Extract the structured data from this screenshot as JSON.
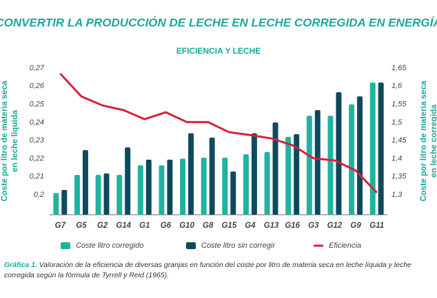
{
  "chart_data": {
    "type": "bar",
    "title": "CONVERTIR LA PRODUCCIÓN DE LECHE EN LECHE CORREGIDA EN ENERGÍA",
    "subtitle": "EFICIENCIA Y LECHE",
    "y_label": "Coste por litro de materia seca en leche líquida",
    "y2_label": "Coste por litro de materia seca en leche corregida",
    "categories": [
      "G7",
      "G5",
      "G2",
      "G14",
      "G1",
      "G6",
      "G10",
      "G8",
      "G15",
      "G4",
      "G13",
      "G16",
      "G3",
      "G12",
      "G9",
      "G11"
    ],
    "series": [
      {
        "name": "Coste litro corregido",
        "type": "bar",
        "color": "#1fb3a0",
        "values": [
          0.201,
          0.211,
          0.211,
          0.211,
          0.2163,
          0.2163,
          0.22,
          0.2205,
          0.2205,
          0.2224,
          0.2236,
          0.232,
          0.2437,
          0.2437,
          0.25,
          0.262
        ]
      },
      {
        "name": "Coste litro sin corregir",
        "type": "bar",
        "color": "#0e4a5e",
        "values": [
          0.2027,
          0.2247,
          0.2118,
          0.2262,
          0.2194,
          0.2194,
          0.234,
          0.2316,
          0.2129,
          0.234,
          0.24,
          0.2335,
          0.2468,
          0.2567,
          0.2544,
          0.262
        ]
      },
      {
        "name": "Eficiencia",
        "type": "line",
        "axis": "y2",
        "color": "#d6213b",
        "values": [
          1.635,
          1.572,
          1.547,
          1.534,
          1.509,
          1.528,
          1.501,
          1.501,
          1.473,
          1.465,
          1.456,
          1.437,
          1.401,
          1.395,
          1.367,
          1.306
        ]
      }
    ],
    "ylim": [
      0.189,
      0.27
    ],
    "yticks": [
      {
        "value": 0.2,
        "label": "0,2"
      },
      {
        "value": 0.21,
        "label": "0,21"
      },
      {
        "value": 0.22,
        "label": "0,22"
      },
      {
        "value": 0.23,
        "label": "0,23"
      },
      {
        "value": 0.24,
        "label": "0,24"
      },
      {
        "value": 0.25,
        "label": "0,25"
      },
      {
        "value": 0.26,
        "label": "0,26"
      },
      {
        "value": 0.27,
        "label": "0,27"
      }
    ],
    "y2lim": [
      1.245,
      1.65
    ],
    "y2ticks": [
      {
        "value": 1.3,
        "label": "1,3"
      },
      {
        "value": 1.35,
        "label": "1,35"
      },
      {
        "value": 1.4,
        "label": "1,4"
      },
      {
        "value": 1.45,
        "label": "1,45"
      },
      {
        "value": 1.5,
        "label": "1,5"
      },
      {
        "value": 1.55,
        "label": "1,55"
      },
      {
        "value": 1.6,
        "label": "1,6"
      },
      {
        "value": 1.65,
        "label": "1,65"
      }
    ],
    "grid": false,
    "caption_label": "Gráfica 1.",
    "caption_text": "Valoración de la eficiencia de diversas granjas en función del coste por litro de materia seca en leche líquida y leche corregida según la fórmula de Tyrrell y Reid (1965)."
  }
}
